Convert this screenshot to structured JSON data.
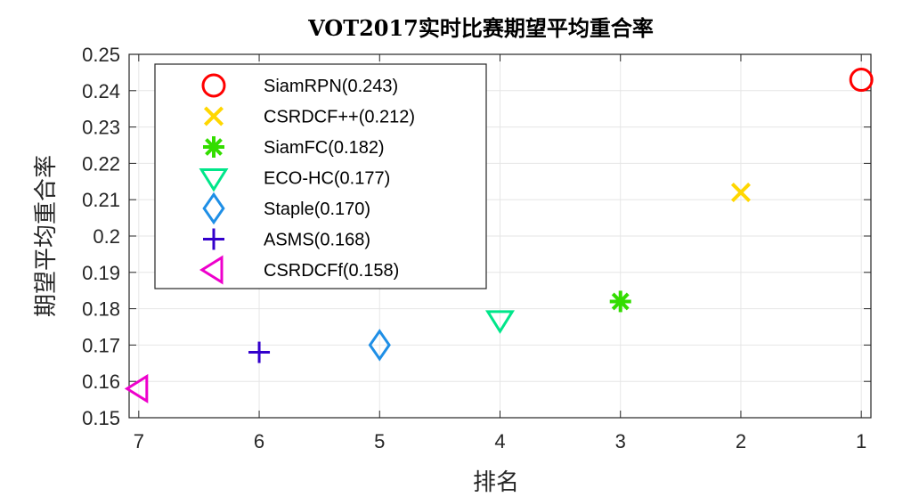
{
  "chart_data": {
    "type": "scatter",
    "title": "VOT2017实时比赛期望平均重合率",
    "xlabel": "排名",
    "ylabel": "期望平均重合率",
    "xlim": [
      1,
      7
    ],
    "x_reversed": true,
    "ylim": [
      0.15,
      0.25
    ],
    "x_ticks": [
      7,
      6,
      5,
      4,
      3,
      2,
      1
    ],
    "x_tick_labels": [
      "7",
      "6",
      "5",
      "4",
      "3",
      "2",
      "1"
    ],
    "y_ticks": [
      0.15,
      0.16,
      0.17,
      0.18,
      0.19,
      0.2,
      0.21,
      0.22,
      0.23,
      0.24,
      0.25
    ],
    "y_tick_labels": [
      "0.15",
      "0.16",
      "0.17",
      "0.18",
      "0.19",
      "0.2",
      "0.21",
      "0.22",
      "0.23",
      "0.24",
      "0.25"
    ],
    "grid": true,
    "legend_position": "top-left",
    "series": [
      {
        "name": "SiamRPN(0.243)",
        "x": 1,
        "y": 0.243,
        "marker": "circle",
        "color": "#ff0000"
      },
      {
        "name": "CSRDCF++(0.212)",
        "x": 2,
        "y": 0.212,
        "marker": "x",
        "color": "#ffd700"
      },
      {
        "name": "SiamFC(0.182)",
        "x": 3,
        "y": 0.182,
        "marker": "asterisk",
        "color": "#33dd00"
      },
      {
        "name": "ECO-HC(0.177)",
        "x": 4,
        "y": 0.177,
        "marker": "triangle-down",
        "color": "#00e68a"
      },
      {
        "name": "Staple(0.170)",
        "x": 5,
        "y": 0.17,
        "marker": "diamond",
        "color": "#1f8fe6"
      },
      {
        "name": "ASMS(0.168)",
        "x": 6,
        "y": 0.168,
        "marker": "plus",
        "color": "#3300cc"
      },
      {
        "name": "CSRDCFf(0.158)",
        "x": 7,
        "y": 0.158,
        "marker": "triangle-left",
        "color": "#ee00cc"
      }
    ]
  }
}
